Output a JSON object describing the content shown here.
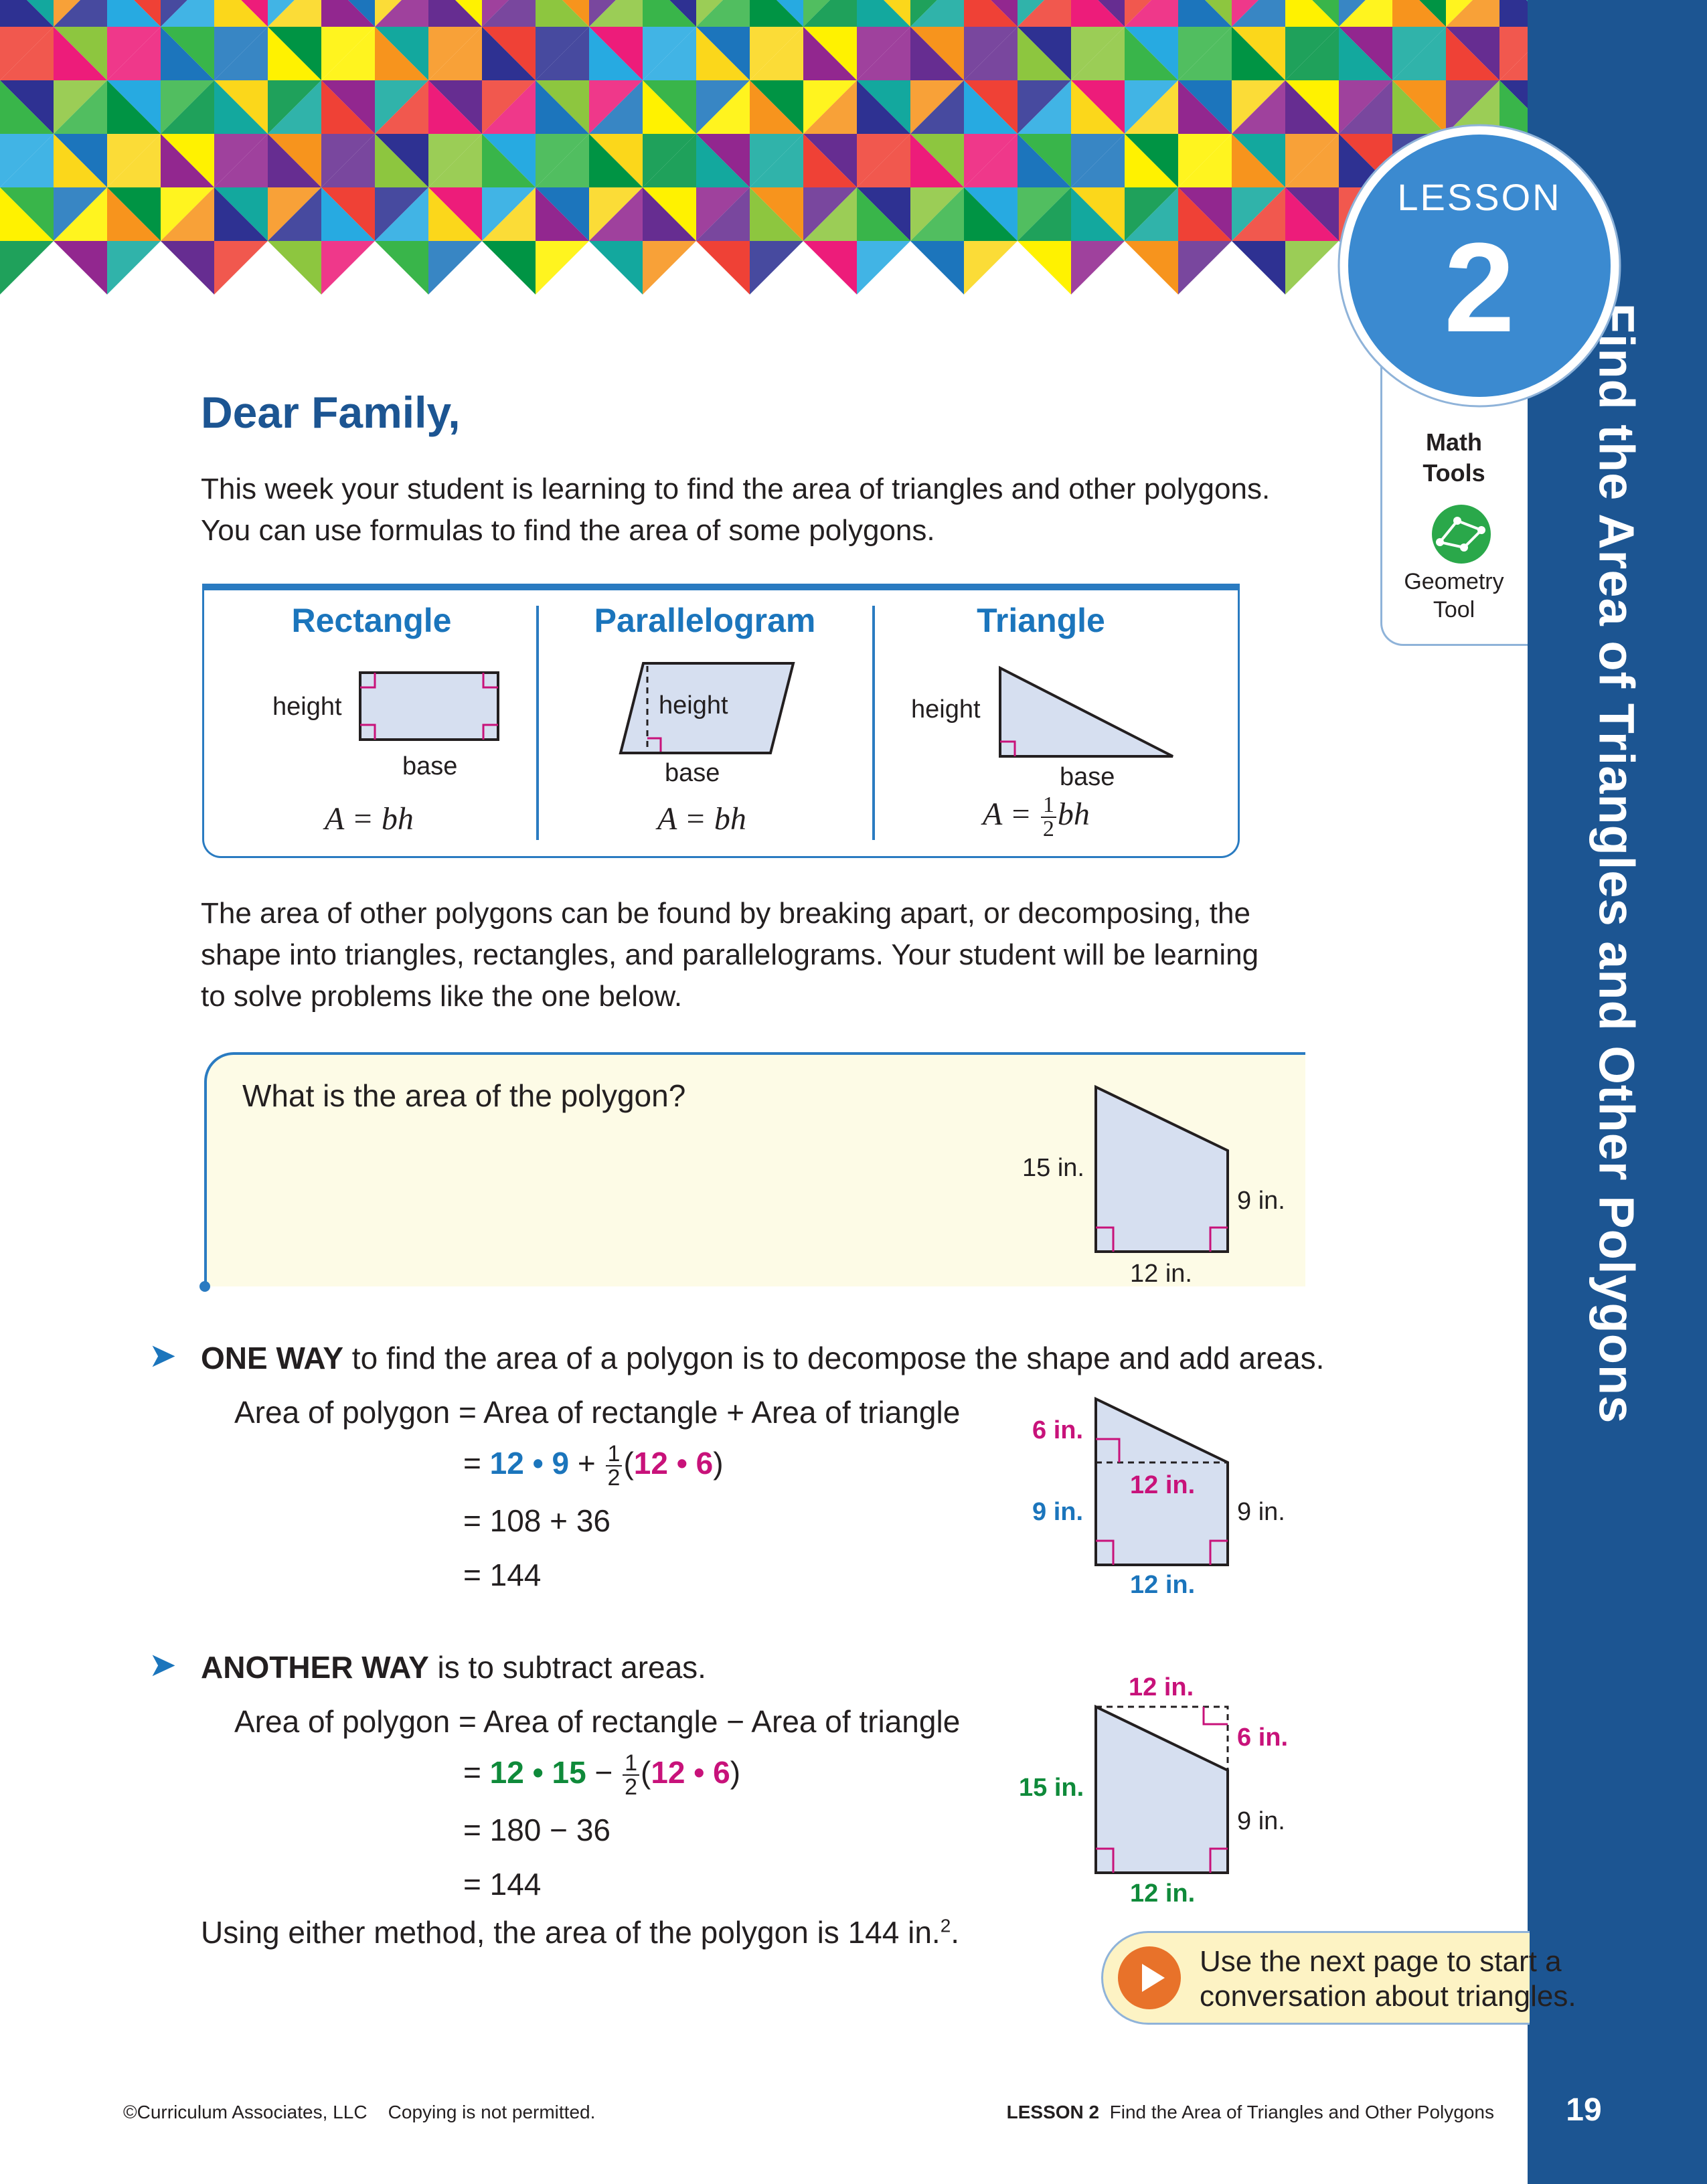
{
  "lesson": {
    "word": "LESSON",
    "number": "2",
    "title": "Find the Area of Triangles and Other Polygons"
  },
  "tools": {
    "title": "Math Tools",
    "title_line1": "Math",
    "title_line2": "Tools",
    "label_line1": "Geometry",
    "label_line2": "Tool",
    "icon": "geometry-tool-icon"
  },
  "greeting": "Dear Family,",
  "intro_line1": "This week your student is learning to find the area of triangles and other polygons.",
  "intro_line2": "You can use formulas to find the area of some polygons.",
  "shapes": [
    {
      "title": "Rectangle",
      "height_label": "height",
      "base_label": "base",
      "formula": "A = bh"
    },
    {
      "title": "Parallelogram",
      "height_label": "height",
      "base_label": "base",
      "formula": "A = bh"
    },
    {
      "title": "Triangle",
      "height_label": "height",
      "base_label": "base",
      "formula_prefix": "A =",
      "frac_num": "1",
      "frac_den": "2",
      "formula_suffix": "bh"
    }
  ],
  "para2_line1": "The area of other polygons can be found by breaking apart, or decomposing, the",
  "para2_line2": "shape into triangles, rectangles, and parallelograms. Your student will be learning",
  "para2_line3": "to solve problems like the one below.",
  "question": "What is the area of the polygon?",
  "figure": {
    "left_side": "15 in.",
    "right_side": "9 in.",
    "bottom": "12 in."
  },
  "way1": {
    "bold": "ONE WAY",
    "rest": " to find the area of a polygon is to decompose the shape and add areas.",
    "line1": "Area of polygon = Area of rectangle + Area of triangle",
    "line2_eq": "=",
    "line2_a": "12 • 9",
    "line2_plus": "+",
    "frac_num": "1",
    "frac_den": "2",
    "line2_open": "(",
    "line2_b": "12 • 6",
    "line2_close": ")",
    "line3": "= 108 + 36",
    "line4": "= 144",
    "fig": {
      "top_left": "6 in.",
      "middle": "12 in.",
      "left": "9 in.",
      "right": "9 in.",
      "bottom": "12 in."
    }
  },
  "way2": {
    "bold": "ANOTHER WAY",
    "rest": " is to subtract areas.",
    "line1": "Area of polygon = Area of rectangle − Area of triangle",
    "line2_eq": "=",
    "line2_a": "12 • 15",
    "line2_minus": "−",
    "frac_num": "1",
    "frac_den": "2",
    "line2_open": "(",
    "line2_b": "12 • 6",
    "line2_close": ")",
    "line3": "= 180 − 36",
    "line4": "= 144",
    "fig": {
      "top": "12 in.",
      "top_right": "6 in.",
      "left": "15 in.",
      "right": "9 in.",
      "bottom": "12 in."
    }
  },
  "conclusion": "Using either method, the area of the polygon is 144 in.",
  "conclusion_sup": "2",
  "conclusion_end": ".",
  "cta_line1": "Use the next page to start a",
  "cta_line2": "conversation about triangles.",
  "footer": {
    "copyright": "©Curriculum Associates, LLC",
    "notice": "Copying is not permitted.",
    "lesson_bold": "LESSON 2",
    "lesson_title": "Find the Area of Triangles and Other Polygons",
    "page": "19"
  },
  "colors": {
    "navy": "#1c5592",
    "blue": "#1b75bc",
    "magenta": "#c8127a",
    "green": "#0f8a3a",
    "shape_fill": "#d6dff0"
  }
}
